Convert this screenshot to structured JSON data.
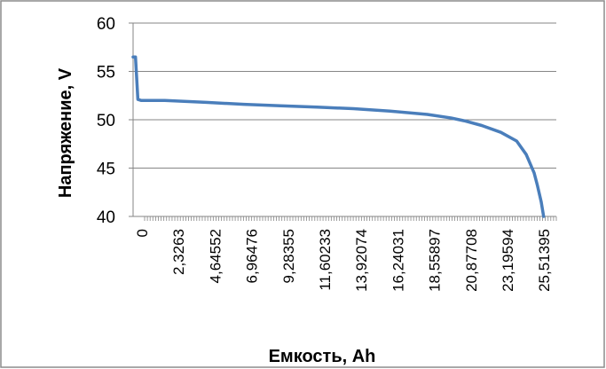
{
  "chart_data": {
    "type": "line",
    "title": "",
    "xlabel": "Емкость, Ah",
    "ylabel": "Напряжение, V",
    "ylim": [
      40,
      60
    ],
    "y_ticks": [
      "60",
      "55",
      "50",
      "45",
      "40"
    ],
    "x_tick_labels": [
      "0",
      "2,3263",
      "4,64552",
      "6,96476",
      "9,28355",
      "11,60233",
      "13,92074",
      "16,24031",
      "18,55897",
      "20,87708",
      "23,19594",
      "25,51395"
    ],
    "grid": {
      "horizontal": true,
      "vertical": false
    },
    "legend": "none",
    "series": [
      {
        "color": "#4a7ebb",
        "x": [
          0,
          0.15,
          0.3,
          0.5,
          2.0,
          4.6,
          7.0,
          9.3,
          11.6,
          13.9,
          16.2,
          18.56,
          20.0,
          20.88,
          22.0,
          23.2,
          24.2,
          24.8,
          25.3,
          25.51,
          25.75,
          25.9
        ],
        "y": [
          56.5,
          56.5,
          52.1,
          52.0,
          52.0,
          51.8,
          51.6,
          51.45,
          51.3,
          51.15,
          50.9,
          50.55,
          50.2,
          49.9,
          49.4,
          48.7,
          47.8,
          46.4,
          44.5,
          43.2,
          41.5,
          40.0
        ]
      }
    ]
  }
}
